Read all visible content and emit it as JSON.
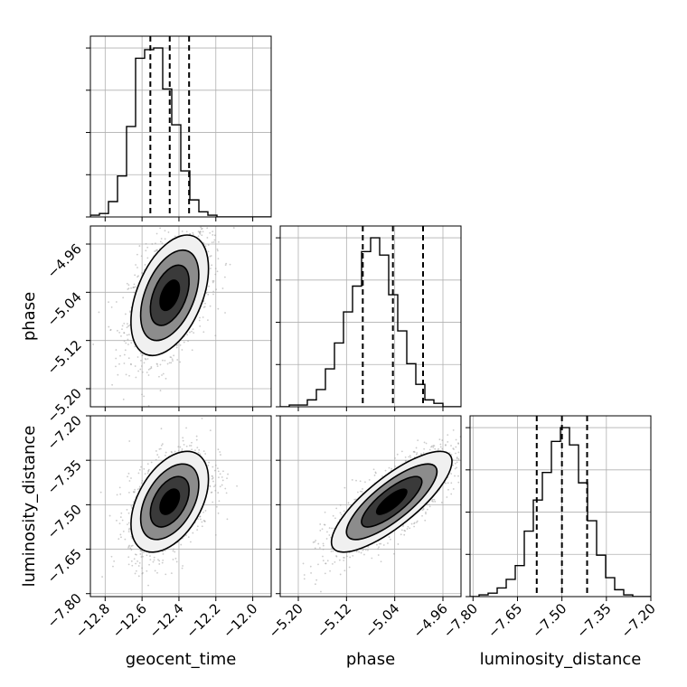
{
  "chart_data": {
    "type": "corner",
    "grid": true,
    "parameters": [
      {
        "key": "geocent_time",
        "label": "geocent_time",
        "range": [
          -12.88,
          -11.9
        ],
        "ticks": [
          -12.8,
          -12.6,
          -12.4,
          -12.2,
          -12.0
        ],
        "tick_labels": [
          "−12.8",
          "−12.6",
          "−12.4",
          "−12.2",
          "−12.0"
        ]
      },
      {
        "key": "phase",
        "label": "phase",
        "range": [
          -5.23,
          -4.93
        ],
        "ticks": [
          -5.2,
          -5.12,
          -5.04,
          -4.96
        ],
        "tick_labels": [
          "−5.20",
          "−5.12",
          "−5.04",
          "−4.96"
        ]
      },
      {
        "key": "luminosity_distance",
        "label": "luminosity_distance",
        "range": [
          -7.81,
          -7.2
        ],
        "ticks": [
          -7.8,
          -7.65,
          -7.5,
          -7.35,
          -7.2
        ],
        "tick_labels": [
          "−7.80",
          "−7.65",
          "−7.50",
          "−7.35",
          "−7.20"
        ]
      }
    ],
    "histograms": {
      "geocent_time": {
        "edges": [
          -12.88,
          -12.831,
          -12.782,
          -12.733,
          -12.684,
          -12.635,
          -12.586,
          -12.537,
          -12.488,
          -12.439,
          -12.39,
          -12.341,
          -12.292,
          -12.243,
          -12.194,
          -12.145,
          -12.096,
          -12.047,
          -11.998,
          -11.949,
          -11.9
        ],
        "counts": [
          1,
          2,
          9,
          24,
          53,
          93,
          98,
          99,
          75,
          54,
          27,
          10,
          3,
          1,
          0,
          0,
          0,
          0,
          0,
          0
        ],
        "quantiles": [
          -12.555,
          -12.45,
          -12.345
        ]
      },
      "phase": {
        "edges": [
          -5.23,
          -5.215,
          -5.2,
          -5.185,
          -5.17,
          -5.155,
          -5.14,
          -5.125,
          -5.11,
          -5.095,
          -5.08,
          -5.065,
          -5.05,
          -5.035,
          -5.02,
          -5.005,
          -4.99,
          -4.975,
          -4.96,
          -4.945,
          -4.93
        ],
        "counts": [
          0,
          1,
          1,
          4,
          10,
          22,
          37,
          55,
          70,
          90,
          98,
          88,
          65,
          44,
          25,
          13,
          4,
          2,
          0,
          0
        ],
        "quantiles": [
          -5.093,
          -5.043,
          -4.993
        ]
      },
      "luminosity_distance": {
        "edges": [
          -7.81,
          -7.7795,
          -7.749,
          -7.7185,
          -7.688,
          -7.6575,
          -7.627,
          -7.5965,
          -7.566,
          -7.5355,
          -7.505,
          -7.4745,
          -7.444,
          -7.4135,
          -7.383,
          -7.3525,
          -7.322,
          -7.2915,
          -7.261,
          -7.2305,
          -7.2
        ],
        "counts": [
          0,
          1,
          2,
          5,
          10,
          18,
          38,
          56,
          72,
          90,
          98,
          88,
          66,
          44,
          24,
          11,
          4,
          1,
          0,
          0
        ],
        "quantiles": [
          -7.585,
          -7.5,
          -7.415
        ]
      }
    },
    "pairs": [
      {
        "x": "geocent_time",
        "y": "phase",
        "mean": [
          -12.45,
          -5.045
        ],
        "sigma": [
          0.105,
          0.05
        ],
        "rho": 0.45,
        "spread": [
          0.5,
          0.25
        ]
      },
      {
        "x": "geocent_time",
        "y": "luminosity_distance",
        "mean": [
          -12.45,
          -7.49
        ],
        "sigma": [
          0.105,
          0.085
        ],
        "rho": 0.45,
        "spread": [
          0.5,
          0.4
        ]
      },
      {
        "x": "phase",
        "y": "luminosity_distance",
        "mean": [
          -5.045,
          -7.49
        ],
        "sigma": [
          0.05,
          0.085
        ],
        "rho": 0.8,
        "spread": [
          0.25,
          0.42
        ]
      }
    ],
    "contour_levels_sigma": [
      0.5,
      1.0,
      1.5,
      2.0
    ],
    "colors": {
      "line": "#000000",
      "scatter": "#a0a0a0",
      "grid": "#b0b0b0",
      "fill_levels": [
        "#000000",
        "#3a3a3a",
        "#8c8c8c",
        "#f0f0f0"
      ]
    }
  }
}
